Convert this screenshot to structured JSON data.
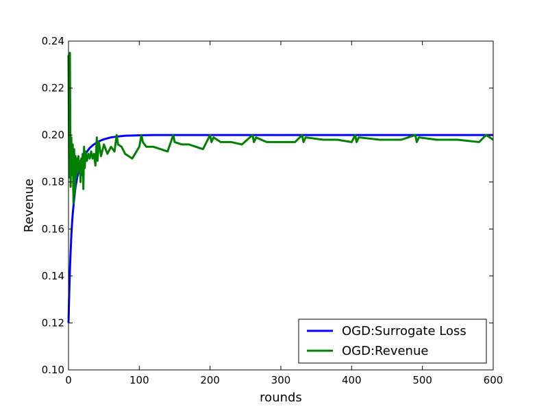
{
  "chart_data": {
    "type": "line",
    "title": "",
    "xlabel": "rounds",
    "ylabel": "Revenue",
    "xlim": [
      0,
      600
    ],
    "ylim": [
      0.1,
      0.24
    ],
    "x_ticks": [
      "0",
      "100",
      "200",
      "300",
      "400",
      "500",
      "600"
    ],
    "y_ticks": [
      "0.10",
      "0.12",
      "0.14",
      "0.16",
      "0.18",
      "0.20",
      "0.22",
      "0.24"
    ],
    "grid": false,
    "legend_position": "lower-right",
    "series": [
      {
        "name": "OGD:Surrogate Loss",
        "color": "#0000ff",
        "x": [
          0,
          1,
          2,
          3,
          4,
          5,
          6,
          8,
          10,
          12,
          15,
          18,
          21,
          25,
          30,
          35,
          40,
          45,
          50,
          60,
          70,
          80,
          90,
          100,
          120,
          150,
          200,
          300,
          400,
          500,
          600
        ],
        "y": [
          0.12,
          0.1325,
          0.1425,
          0.1505,
          0.157,
          0.1625,
          0.1665,
          0.173,
          0.178,
          0.1815,
          0.1855,
          0.1885,
          0.1905,
          0.1925,
          0.1945,
          0.1958,
          0.1968,
          0.1976,
          0.1982,
          0.199,
          0.1994,
          0.1997,
          0.1998,
          0.1999,
          0.2,
          0.2,
          0.2,
          0.2,
          0.2,
          0.2,
          0.2
        ]
      },
      {
        "name": "OGD:Revenue",
        "color": "#008000",
        "x": [
          0,
          1,
          2,
          3,
          4,
          5,
          6,
          7,
          8,
          9,
          10,
          11,
          12,
          13,
          14,
          15,
          16,
          17,
          18,
          19,
          20,
          21,
          22,
          23,
          24,
          26,
          28,
          30,
          32,
          34,
          36,
          38,
          40,
          41,
          43,
          46,
          50,
          55,
          60,
          65,
          68,
          70,
          75,
          80,
          90,
          100,
          103,
          105,
          110,
          120,
          130,
          140,
          148,
          150,
          160,
          170,
          180,
          190,
          200,
          202,
          205,
          215,
          230,
          245,
          260,
          262,
          265,
          280,
          300,
          320,
          330,
          332,
          335,
          360,
          380,
          400,
          405,
          407,
          410,
          440,
          470,
          490,
          492,
          495,
          520,
          550,
          580,
          590,
          600
        ],
        "y": [
          0.234,
          0.182,
          0.235,
          0.178,
          0.199,
          0.183,
          0.196,
          0.171,
          0.194,
          0.175,
          0.191,
          0.182,
          0.19,
          0.184,
          0.191,
          0.185,
          0.189,
          0.18,
          0.19,
          0.183,
          0.192,
          0.177,
          0.195,
          0.186,
          0.193,
          0.189,
          0.192,
          0.19,
          0.193,
          0.19,
          0.192,
          0.187,
          0.199,
          0.189,
          0.197,
          0.191,
          0.196,
          0.192,
          0.195,
          0.193,
          0.2,
          0.196,
          0.195,
          0.192,
          0.19,
          0.195,
          0.2,
          0.197,
          0.195,
          0.195,
          0.194,
          0.193,
          0.2,
          0.197,
          0.196,
          0.196,
          0.195,
          0.194,
          0.2,
          0.197,
          0.199,
          0.197,
          0.197,
          0.196,
          0.2,
          0.197,
          0.199,
          0.197,
          0.197,
          0.197,
          0.2,
          0.197,
          0.199,
          0.198,
          0.198,
          0.197,
          0.2,
          0.197,
          0.199,
          0.198,
          0.198,
          0.2,
          0.197,
          0.199,
          0.198,
          0.198,
          0.197,
          0.2,
          0.198
        ]
      }
    ]
  }
}
